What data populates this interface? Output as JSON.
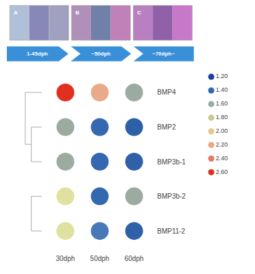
{
  "chart_data": {
    "type": "dot_matrix",
    "categories": [
      "30dph",
      "50dph",
      "60dph"
    ],
    "rows": [
      "BMP4",
      "BMP2",
      "BMP3b-1",
      "BMP3b-2",
      "BMP11-2"
    ],
    "cell_colors": [
      [
        "#e03020",
        "#e8aa88",
        "#9baba0"
      ],
      [
        "#9baba0",
        "#3468b0",
        "#2e60a8"
      ],
      [
        "#9baba0",
        "#3468b0",
        "#3060a8"
      ],
      [
        "#e0e0a0",
        "#3468b0",
        "#9baba0"
      ],
      [
        "#e0e0a0",
        "#4878b8",
        "#3060a8"
      ]
    ],
    "color_key": {
      "values": [
        {
          "value": 1.2,
          "label": "1.20"
        },
        {
          "value": 1.4,
          "label": "1.40"
        },
        {
          "value": 1.6,
          "label": "1.60"
        },
        {
          "value": 1.8,
          "label": "1.80"
        },
        {
          "value": 2.0,
          "label": "2.00"
        },
        {
          "value": 2.2,
          "label": "2.20"
        },
        {
          "value": 2.4,
          "label": "2.40"
        },
        {
          "value": 2.6,
          "label": "2.60"
        }
      ],
      "colors": [
        "#1a3fa0",
        "#3468b0",
        "#9baba0",
        "#c8c890",
        "#e8c888",
        "#e8a880",
        "#e87868",
        "#e03020"
      ]
    },
    "panels": [
      {
        "label": "A",
        "colors": [
          "#b0c0d8",
          "#8888b8",
          "#a0a0c0"
        ]
      },
      {
        "label": "B",
        "colors": [
          "#b090b8",
          "#7080a8",
          "#c080b8"
        ]
      },
      {
        "label": "C",
        "colors": [
          "#b880c0",
          "#9060a8",
          "#c878c8"
        ]
      }
    ],
    "banner": {
      "labels": [
        "1-45dph",
        "~50dph",
        "~70dph~"
      ],
      "color": "#3a90d8"
    },
    "dendrogram": {
      "color": "#aaaaaa",
      "tree": [
        [
          "BMP4",
          [
            "BMP2",
            "BMP3b-1"
          ]
        ],
        [
          "BMP3b-2",
          "BMP11-2"
        ]
      ]
    },
    "grid": false
  }
}
